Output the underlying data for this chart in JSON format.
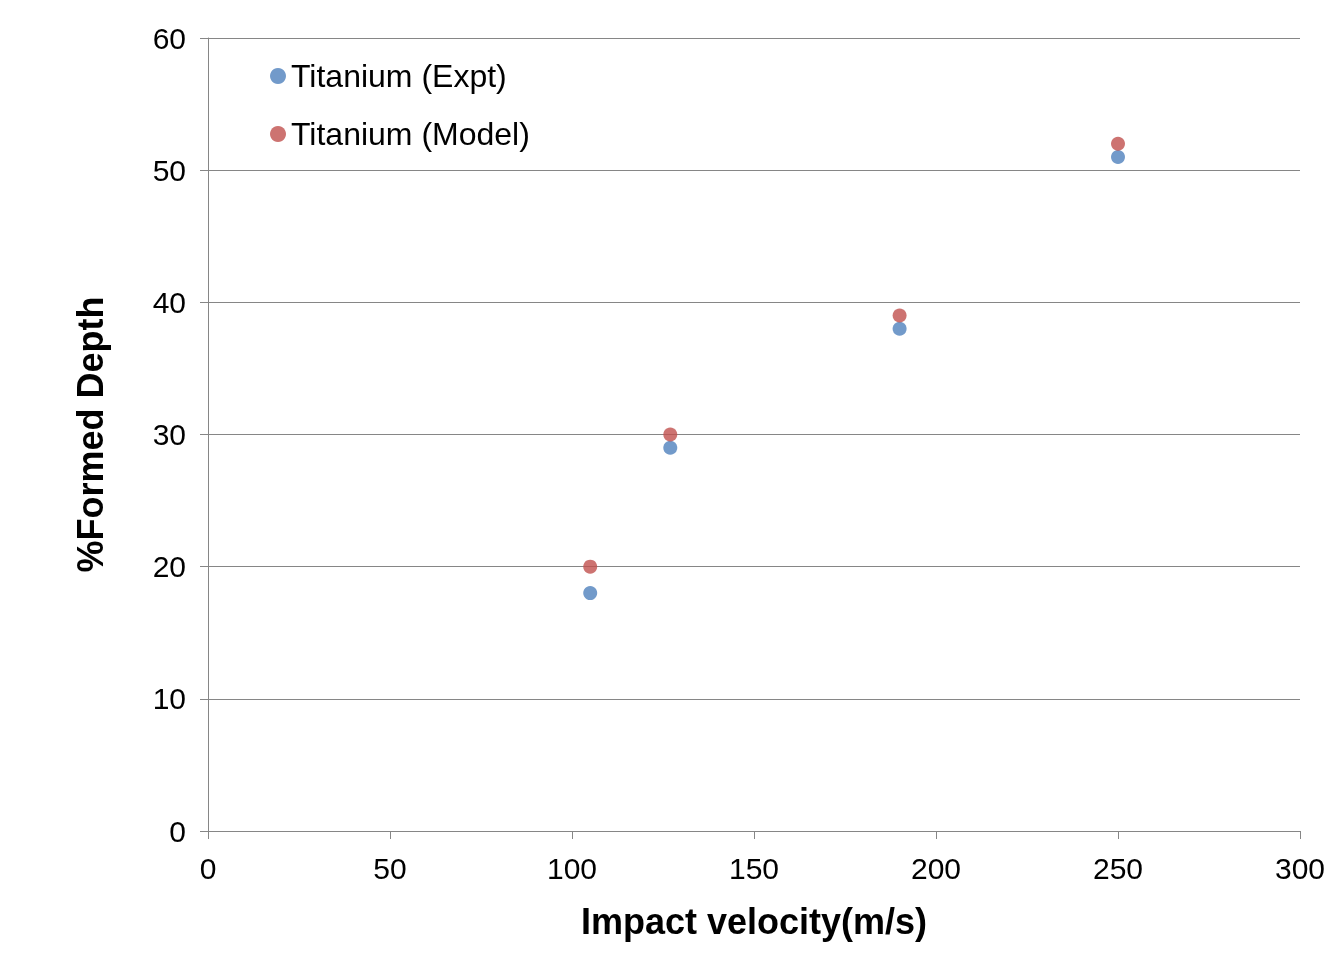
{
  "chart_data": {
    "type": "scatter",
    "xlabel": "Impact velocity(m/s)",
    "ylabel": "%Formed Depth",
    "series": [
      {
        "name": "Titanium (Expt)",
        "color": "#4f81bd",
        "x": [
          105,
          127,
          190,
          250
        ],
        "values": [
          18,
          29,
          38,
          51
        ]
      },
      {
        "name": "Titanium (Model)",
        "color": "#c0504d",
        "x": [
          105,
          127,
          190,
          250
        ],
        "values": [
          20,
          30,
          39,
          52
        ]
      }
    ],
    "xlim": [
      0,
      300
    ],
    "xticks": [
      0,
      50,
      100,
      150,
      200,
      250,
      300
    ],
    "ylim": [
      0,
      60
    ],
    "yticks": [
      0,
      10,
      20,
      30,
      40,
      50,
      60
    ],
    "grid": "y",
    "legend": "top left",
    "marker": "circle"
  }
}
